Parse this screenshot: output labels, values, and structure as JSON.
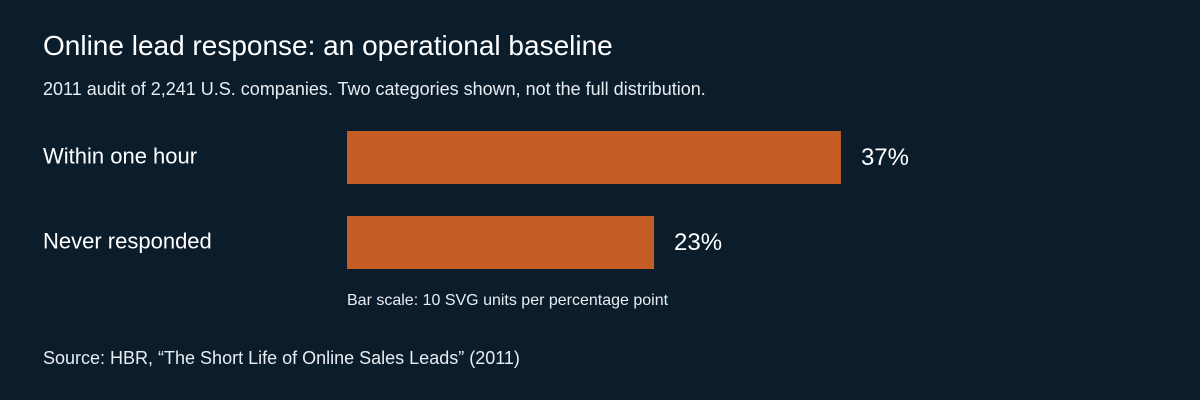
{
  "chart_data": {
    "type": "bar",
    "orientation": "horizontal",
    "title": "Online lead response: an operational baseline",
    "subtitle": "2011 audit of 2,241 U.S. companies. Two categories shown, not the full distribution.",
    "categories": [
      "Within one hour",
      "Never responded"
    ],
    "values": [
      37,
      23
    ],
    "value_labels": [
      "37%",
      "23%"
    ],
    "unit": "%",
    "xlim": [
      0,
      100
    ],
    "grid": false,
    "legend": "none",
    "bar_color": "#c45c26",
    "scale_note": "Bar scale: 10 SVG units per percentage point",
    "source": "Source: HBR, “The Short Life of Online Sales Leads” (2011)"
  },
  "colors": {
    "background": "#0b1c2b",
    "text": "#ffffff",
    "bar": "#c45c26"
  }
}
